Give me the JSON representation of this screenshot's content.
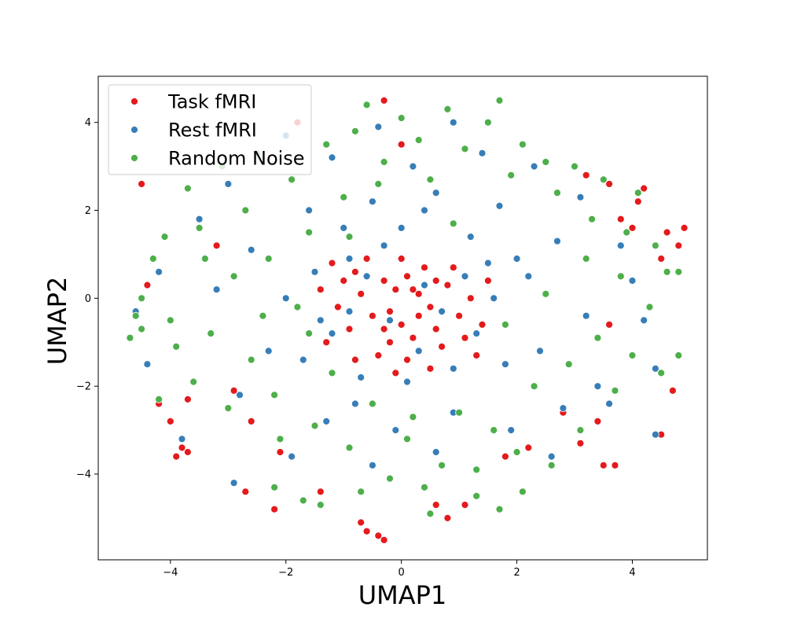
{
  "chart_data": {
    "type": "scatter",
    "title": "",
    "xlabel": "UMAP1",
    "ylabel": "UMAP2",
    "xlim": [
      -5.25,
      5.3
    ],
    "ylim": [
      -5.95,
      5.05
    ],
    "xticks": [
      -4,
      -2,
      0,
      2,
      4
    ],
    "yticks": [
      -4,
      -2,
      0,
      2,
      4
    ],
    "grid": false,
    "legend_position": "top-left",
    "point_edge_color": "#ffffff",
    "series": [
      {
        "name": "Task fMRI",
        "color": "#e41a1c",
        "points": [
          [
            -0.3,
            0.4
          ],
          [
            -0.1,
            0.2
          ],
          [
            0.1,
            0.5
          ],
          [
            0.3,
            0.1
          ],
          [
            0.5,
            -0.2
          ],
          [
            -0.5,
            -0.4
          ],
          [
            0.0,
            -0.6
          ],
          [
            0.2,
            -0.9
          ],
          [
            -0.2,
            -1.0
          ],
          [
            0.6,
            -0.7
          ],
          [
            -0.7,
            0.1
          ],
          [
            0.8,
            0.3
          ],
          [
            -0.9,
            -0.7
          ],
          [
            1.0,
            -0.4
          ],
          [
            0.4,
            0.7
          ],
          [
            -0.4,
            -1.3
          ],
          [
            0.7,
            -1.1
          ],
          [
            -0.8,
            0.6
          ],
          [
            1.2,
            0.0
          ],
          [
            -1.1,
            -0.2
          ],
          [
            0.1,
            -1.4
          ],
          [
            -0.6,
            0.9
          ],
          [
            1.1,
            -0.9
          ],
          [
            -1.3,
            -1.0
          ],
          [
            0.9,
            0.7
          ],
          [
            -1.0,
            0.4
          ],
          [
            1.4,
            -0.6
          ],
          [
            0.0,
            0.9
          ],
          [
            -0.2,
            -0.3
          ],
          [
            0.3,
            -0.4
          ],
          [
            -0.3,
            -0.7
          ],
          [
            0.6,
            0.4
          ],
          [
            -0.8,
            -1.4
          ],
          [
            1.5,
            0.4
          ],
          [
            -1.4,
            0.2
          ],
          [
            0.2,
            0.2
          ],
          [
            -0.1,
            -1.7
          ],
          [
            0.5,
            -1.6
          ],
          [
            1.3,
            -1.3
          ],
          [
            -1.2,
            0.8
          ],
          [
            -4.5,
            2.6
          ],
          [
            -4.2,
            -2.4
          ],
          [
            -4.0,
            -2.8
          ],
          [
            -3.8,
            -3.4
          ],
          [
            -3.7,
            -3.5
          ],
          [
            -3.9,
            -3.6
          ],
          [
            -3.7,
            -2.3
          ],
          [
            -2.9,
            -2.1
          ],
          [
            -2.6,
            -2.8
          ],
          [
            -2.1,
            -3.5
          ],
          [
            -2.7,
            -4.4
          ],
          [
            -2.2,
            -4.8
          ],
          [
            -1.4,
            -4.4
          ],
          [
            -0.7,
            -5.1
          ],
          [
            -0.6,
            -5.3
          ],
          [
            -0.4,
            -5.4
          ],
          [
            -0.3,
            -5.5
          ],
          [
            0.6,
            -4.7
          ],
          [
            0.8,
            -5.0
          ],
          [
            1.1,
            -4.7
          ],
          [
            2.2,
            -3.4
          ],
          [
            2.8,
            -2.6
          ],
          [
            3.1,
            -3.3
          ],
          [
            3.4,
            -2.8
          ],
          [
            3.5,
            -3.8
          ],
          [
            3.7,
            -3.8
          ],
          [
            4.5,
            -3.1
          ],
          [
            4.7,
            -2.1
          ],
          [
            4.9,
            1.6
          ],
          [
            4.6,
            1.5
          ],
          [
            4.8,
            1.2
          ],
          [
            4.2,
            2.5
          ],
          [
            4.1,
            2.2
          ],
          [
            3.6,
            2.6
          ],
          [
            3.8,
            1.8
          ],
          [
            3.2,
            2.8
          ],
          [
            4.5,
            0.9
          ],
          [
            -4.4,
            0.3
          ],
          [
            -1.8,
            4.0
          ],
          [
            -0.3,
            4.5
          ],
          [
            0.0,
            3.5
          ],
          [
            4.0,
            1.6
          ],
          [
            3.6,
            -0.6
          ],
          [
            -3.2,
            1.2
          ],
          [
            1.8,
            -3.6
          ]
        ]
      },
      {
        "name": "Rest fMRI",
        "color": "#377eb8",
        "points": [
          [
            -0.6,
            0.5
          ],
          [
            0.4,
            0.3
          ],
          [
            -0.2,
            -0.5
          ],
          [
            0.7,
            -0.3
          ],
          [
            -0.9,
            -0.3
          ],
          [
            1.1,
            0.5
          ],
          [
            -0.3,
            1.2
          ],
          [
            0.3,
            -1.2
          ],
          [
            -1.2,
            -0.8
          ],
          [
            1.3,
            -0.8
          ],
          [
            -1.5,
            0.6
          ],
          [
            1.6,
            0.0
          ],
          [
            0.0,
            1.6
          ],
          [
            0.1,
            -1.9
          ],
          [
            -1.7,
            -1.4
          ],
          [
            1.8,
            -1.5
          ],
          [
            -1.0,
            1.6
          ],
          [
            1.2,
            1.4
          ],
          [
            -2.0,
            0.0
          ],
          [
            2.2,
            0.5
          ],
          [
            -0.5,
            2.2
          ],
          [
            0.6,
            2.4
          ],
          [
            -1.6,
            2.0
          ],
          [
            1.7,
            2.1
          ],
          [
            -2.3,
            -1.2
          ],
          [
            2.4,
            -1.2
          ],
          [
            -0.8,
            -2.4
          ],
          [
            0.9,
            -2.6
          ],
          [
            -2.6,
            1.1
          ],
          [
            2.7,
            1.3
          ],
          [
            0.2,
            3.0
          ],
          [
            -1.2,
            3.2
          ],
          [
            1.4,
            3.3
          ],
          [
            -2.8,
            -2.2
          ],
          [
            2.8,
            -2.5
          ],
          [
            -0.1,
            -3.0
          ],
          [
            -3.2,
            0.2
          ],
          [
            3.2,
            -0.4
          ],
          [
            -0.4,
            3.9
          ],
          [
            0.9,
            4.0
          ],
          [
            -2.0,
            3.7
          ],
          [
            -4.6,
            -0.3
          ],
          [
            -4.4,
            -1.5
          ],
          [
            -4.2,
            0.6
          ],
          [
            -3.8,
            -3.2
          ],
          [
            -2.9,
            -4.2
          ],
          [
            -1.9,
            -3.6
          ],
          [
            -0.5,
            -3.8
          ],
          [
            0.6,
            -3.5
          ],
          [
            1.9,
            -3.0
          ],
          [
            2.6,
            -3.6
          ],
          [
            3.6,
            -2.4
          ],
          [
            3.4,
            -2.0
          ],
          [
            4.4,
            -1.6
          ],
          [
            4.4,
            -3.1
          ],
          [
            4.2,
            -0.5
          ],
          [
            4.0,
            0.4
          ],
          [
            3.8,
            1.2
          ],
          [
            3.1,
            2.3
          ],
          [
            2.3,
            3.0
          ],
          [
            -3.0,
            2.6
          ],
          [
            -3.5,
            1.8
          ],
          [
            -1.3,
            -2.8
          ],
          [
            0.4,
            2.0
          ],
          [
            -0.9,
            0.9
          ],
          [
            0.9,
            -1.6
          ],
          [
            1.5,
            0.8
          ],
          [
            -1.4,
            -0.5
          ],
          [
            2.0,
            0.9
          ],
          [
            -0.7,
            -1.8
          ]
        ]
      },
      {
        "name": "Random Noise",
        "color": "#4daf4a",
        "points": [
          [
            -4.7,
            -0.9
          ],
          [
            -4.5,
            0.0
          ],
          [
            -4.3,
            0.9
          ],
          [
            -4.1,
            1.4
          ],
          [
            -4.0,
            -0.5
          ],
          [
            -4.2,
            -2.3
          ],
          [
            -3.7,
            2.5
          ],
          [
            -3.5,
            1.6
          ],
          [
            -3.3,
            -0.8
          ],
          [
            -3.6,
            -1.9
          ],
          [
            -3.1,
            3.0
          ],
          [
            -2.9,
            0.5
          ],
          [
            -3.0,
            -2.5
          ],
          [
            -2.7,
            2.0
          ],
          [
            -2.6,
            -1.4
          ],
          [
            -2.5,
            3.3
          ],
          [
            -2.3,
            0.9
          ],
          [
            -2.2,
            -2.2
          ],
          [
            -2.1,
            -3.2
          ],
          [
            -1.9,
            2.7
          ],
          [
            -1.8,
            -0.2
          ],
          [
            -1.7,
            -4.6
          ],
          [
            -1.6,
            1.5
          ],
          [
            -1.5,
            -2.9
          ],
          [
            -1.3,
            3.5
          ],
          [
            -1.2,
            -1.7
          ],
          [
            -1.0,
            2.3
          ],
          [
            -0.9,
            -3.4
          ],
          [
            -0.8,
            3.8
          ],
          [
            -0.7,
            -4.4
          ],
          [
            -0.6,
            4.4
          ],
          [
            -0.5,
            -2.4
          ],
          [
            -0.3,
            3.1
          ],
          [
            -0.2,
            -4.1
          ],
          [
            0.0,
            4.1
          ],
          [
            0.1,
            -3.2
          ],
          [
            0.3,
            3.6
          ],
          [
            0.4,
            -4.3
          ],
          [
            0.5,
            2.7
          ],
          [
            0.7,
            -3.8
          ],
          [
            0.8,
            4.3
          ],
          [
            1.0,
            -2.6
          ],
          [
            1.1,
            3.4
          ],
          [
            1.3,
            -3.9
          ],
          [
            1.5,
            4.0
          ],
          [
            1.6,
            -3.0
          ],
          [
            1.7,
            4.5
          ],
          [
            1.9,
            2.8
          ],
          [
            2.0,
            -3.5
          ],
          [
            2.1,
            3.5
          ],
          [
            2.3,
            -2.0
          ],
          [
            2.5,
            3.1
          ],
          [
            2.6,
            -3.8
          ],
          [
            2.7,
            2.4
          ],
          [
            2.9,
            -1.5
          ],
          [
            3.0,
            3.0
          ],
          [
            3.1,
            -3.0
          ],
          [
            3.3,
            1.8
          ],
          [
            3.4,
            -0.9
          ],
          [
            3.5,
            2.7
          ],
          [
            3.7,
            -2.1
          ],
          [
            3.8,
            0.5
          ],
          [
            3.9,
            1.5
          ],
          [
            4.0,
            -1.3
          ],
          [
            4.1,
            2.4
          ],
          [
            4.3,
            -0.2
          ],
          [
            4.4,
            1.2
          ],
          [
            4.5,
            -1.7
          ],
          [
            4.6,
            0.6
          ],
          [
            4.8,
            -1.3
          ],
          [
            4.8,
            0.6
          ],
          [
            -4.6,
            -0.4
          ],
          [
            -4.5,
            -0.7
          ],
          [
            -3.9,
            -1.1
          ],
          [
            -2.2,
            -4.3
          ],
          [
            -1.4,
            -4.7
          ],
          [
            0.5,
            -4.9
          ],
          [
            1.3,
            -4.5
          ],
          [
            1.7,
            -4.8
          ],
          [
            2.1,
            -4.4
          ],
          [
            -0.9,
            1.4
          ],
          [
            0.9,
            1.7
          ],
          [
            -1.6,
            -0.8
          ],
          [
            1.8,
            -0.6
          ],
          [
            -2.4,
            -0.4
          ],
          [
            2.5,
            0.1
          ],
          [
            -0.4,
            2.6
          ],
          [
            0.2,
            -2.7
          ],
          [
            -3.4,
            0.9
          ],
          [
            3.2,
            0.9
          ]
        ]
      }
    ]
  }
}
